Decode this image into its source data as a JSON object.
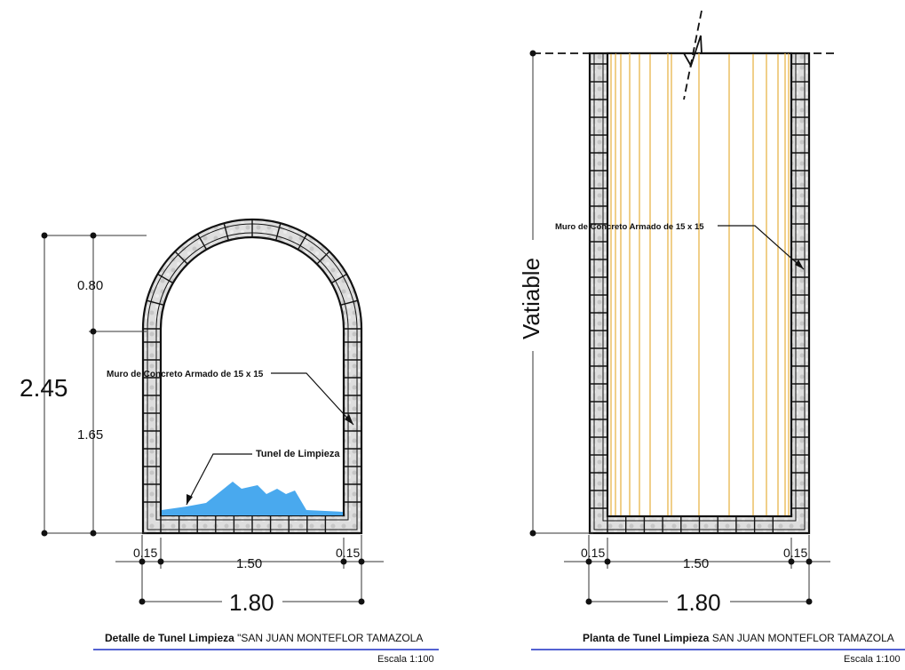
{
  "left": {
    "dim_total": "2.45",
    "dim_top": "0.80",
    "dim_bottom": "1.65",
    "wall_label": "Muro de Concreto Armado de 15 x 15",
    "tunnel_label": "Tunel de Limpieza",
    "dim_wall_left": "0.15",
    "dim_inner": "1.50",
    "dim_wall_right": "0.15",
    "dim_width": "1.80",
    "title_bold": "Detalle de Tunel Limpieza",
    "title_rest": "\"SAN JUAN MONTEFLOR TAMAZOLA",
    "scale": "Escala 1:100"
  },
  "right": {
    "dim_height": "Vatiable",
    "wall_label": "Muro de Concreto Armado de 15 x 15",
    "dim_wall_left": "0.15",
    "dim_inner": "1.50",
    "dim_wall_right": "0.15",
    "dim_width": "1.80",
    "title_bold": "Planta de Tunel Limpieza",
    "title_rest": "SAN JUAN MONTEFLOR TAMAZOLA",
    "scale": "Escala 1:100"
  },
  "colors": {
    "water": "#49a9ee",
    "rebar": "#e8b54a",
    "title_underline": "#1b2fc4"
  }
}
